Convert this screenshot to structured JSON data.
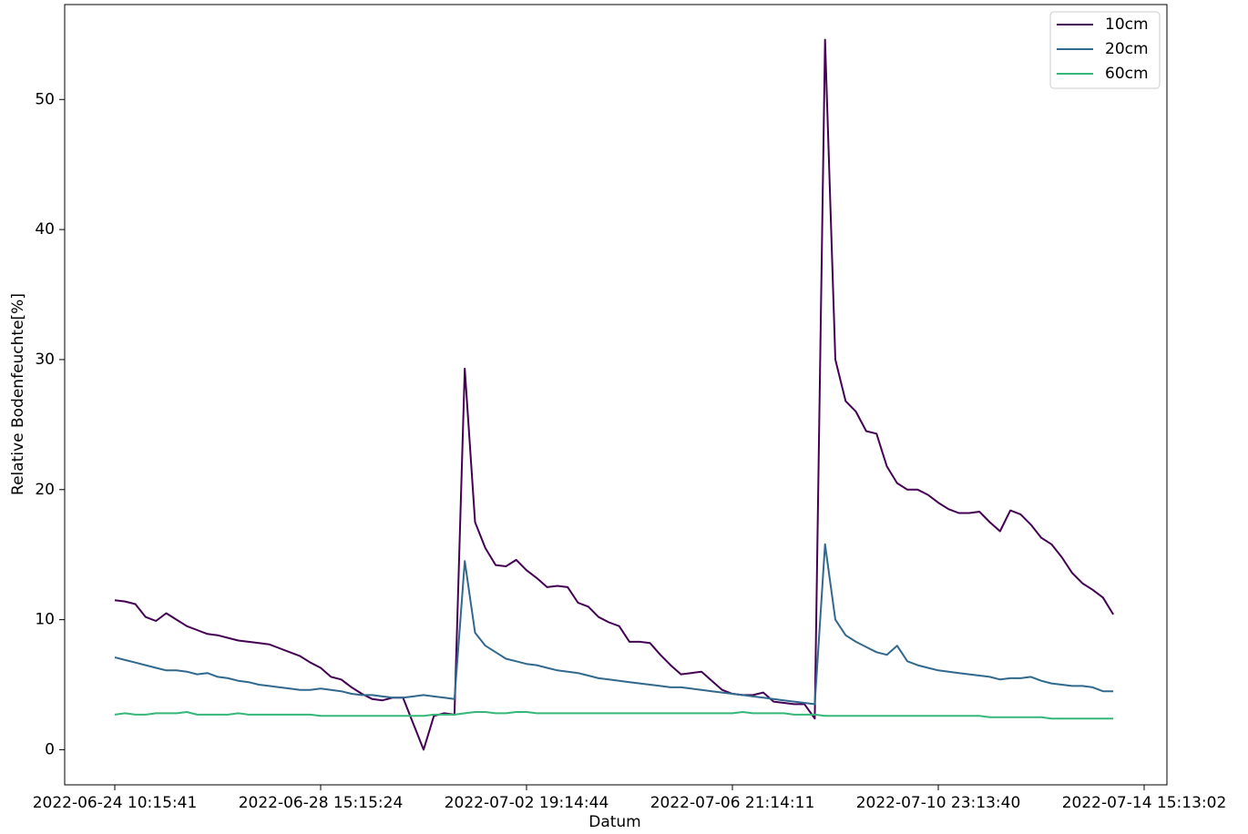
{
  "chart_data": {
    "type": "line",
    "xlabel": "Datum",
    "ylabel": "Relative Bodenfeuchte[%]",
    "categories": [
      "2022-06-24 10:15:41",
      null,
      null,
      null,
      null,
      null,
      null,
      null,
      null,
      null,
      null,
      null,
      null,
      null,
      null,
      null,
      null,
      null,
      null,
      null,
      "2022-06-28 15:15:24",
      null,
      null,
      null,
      null,
      null,
      null,
      null,
      null,
      null,
      null,
      null,
      null,
      null,
      null,
      null,
      null,
      null,
      null,
      null,
      "2022-07-02 19:14:44",
      null,
      null,
      null,
      null,
      null,
      null,
      null,
      null,
      null,
      null,
      null,
      null,
      null,
      null,
      null,
      null,
      null,
      null,
      null,
      "2022-07-06 21:14:11",
      null,
      null,
      null,
      null,
      null,
      null,
      null,
      null,
      null,
      null,
      null,
      null,
      null,
      null,
      null,
      null,
      null,
      null,
      null,
      "2022-07-10 23:13:40",
      null,
      null,
      null,
      null,
      null,
      null,
      null,
      null,
      null,
      null,
      null,
      null,
      null,
      null,
      null,
      null,
      null,
      null,
      null,
      "2022-07-14 15:13:02"
    ],
    "series": [
      {
        "name": "10cm",
        "color": "#440154",
        "values": [
          11.5,
          11.4,
          11.2,
          10.2,
          9.9,
          10.5,
          10.0,
          9.5,
          9.2,
          8.9,
          8.8,
          8.6,
          8.4,
          8.3,
          8.2,
          8.1,
          7.8,
          7.5,
          7.2,
          6.7,
          6.3,
          5.6,
          5.4,
          4.8,
          4.3,
          3.9,
          3.8,
          4.0,
          4.0,
          2.0,
          0.0,
          2.6,
          2.8,
          2.7,
          29.3,
          17.5,
          15.5,
          14.2,
          14.1,
          14.6,
          13.8,
          13.2,
          12.5,
          12.6,
          12.5,
          11.3,
          11.0,
          10.2,
          9.8,
          9.5,
          8.3,
          8.3,
          8.2,
          7.3,
          6.5,
          5.8,
          5.9,
          6.0,
          5.3,
          4.6,
          4.3,
          4.2,
          4.2,
          4.4,
          3.7,
          3.6,
          3.5,
          3.5,
          2.4,
          54.6,
          30.0,
          26.8,
          26.0,
          24.5,
          24.3,
          21.8,
          20.5,
          20.0,
          20.0,
          19.6,
          19.0,
          18.5,
          18.2,
          18.2,
          18.3,
          17.5,
          16.8,
          18.4,
          18.1,
          17.3,
          16.3,
          15.8,
          14.8,
          13.6,
          12.8,
          12.3,
          11.7,
          10.4,
          null,
          null,
          null
        ]
      },
      {
        "name": "20cm",
        "color": "#31688e",
        "values": [
          7.1,
          6.9,
          6.7,
          6.5,
          6.3,
          6.1,
          6.1,
          6.0,
          5.8,
          5.9,
          5.6,
          5.5,
          5.3,
          5.2,
          5.0,
          4.9,
          4.8,
          4.7,
          4.6,
          4.6,
          4.7,
          4.6,
          4.5,
          4.3,
          4.2,
          4.2,
          4.1,
          4.0,
          4.0,
          4.1,
          4.2,
          4.1,
          4.0,
          3.9,
          14.5,
          9.0,
          8.0,
          7.5,
          7.0,
          6.8,
          6.6,
          6.5,
          6.3,
          6.1,
          6.0,
          5.9,
          5.7,
          5.5,
          5.4,
          5.3,
          5.2,
          5.1,
          5.0,
          4.9,
          4.8,
          4.8,
          4.7,
          4.6,
          4.5,
          4.4,
          4.3,
          4.2,
          4.1,
          4.0,
          3.9,
          3.8,
          3.7,
          3.6,
          3.5,
          15.8,
          10.0,
          8.8,
          8.3,
          7.9,
          7.5,
          7.3,
          8.0,
          6.8,
          6.5,
          6.3,
          6.1,
          6.0,
          5.9,
          5.8,
          5.7,
          5.6,
          5.4,
          5.5,
          5.5,
          5.6,
          5.3,
          5.1,
          5.0,
          4.9,
          4.9,
          4.8,
          4.5,
          4.5,
          null,
          null,
          null
        ]
      },
      {
        "name": "60cm",
        "color": "#35b779",
        "values": [
          2.7,
          2.8,
          2.7,
          2.7,
          2.8,
          2.8,
          2.8,
          2.9,
          2.7,
          2.7,
          2.7,
          2.7,
          2.8,
          2.7,
          2.7,
          2.7,
          2.7,
          2.7,
          2.7,
          2.7,
          2.6,
          2.6,
          2.6,
          2.6,
          2.6,
          2.6,
          2.6,
          2.6,
          2.6,
          2.6,
          2.6,
          2.7,
          2.7,
          2.7,
          2.8,
          2.9,
          2.9,
          2.8,
          2.8,
          2.9,
          2.9,
          2.8,
          2.8,
          2.8,
          2.8,
          2.8,
          2.8,
          2.8,
          2.8,
          2.8,
          2.8,
          2.8,
          2.8,
          2.8,
          2.8,
          2.8,
          2.8,
          2.8,
          2.8,
          2.8,
          2.8,
          2.9,
          2.8,
          2.8,
          2.8,
          2.8,
          2.7,
          2.7,
          2.7,
          2.6,
          2.6,
          2.6,
          2.6,
          2.6,
          2.6,
          2.6,
          2.6,
          2.6,
          2.6,
          2.6,
          2.6,
          2.6,
          2.6,
          2.6,
          2.6,
          2.5,
          2.5,
          2.5,
          2.5,
          2.5,
          2.5,
          2.4,
          2.4,
          2.4,
          2.4,
          2.4,
          2.4,
          2.4,
          null,
          null,
          null
        ]
      }
    ],
    "ylim": [
      -2.7,
      57.3
    ],
    "yticks": [
      0,
      10,
      20,
      30,
      40,
      50
    ],
    "grid": false,
    "legend": "upper right"
  }
}
